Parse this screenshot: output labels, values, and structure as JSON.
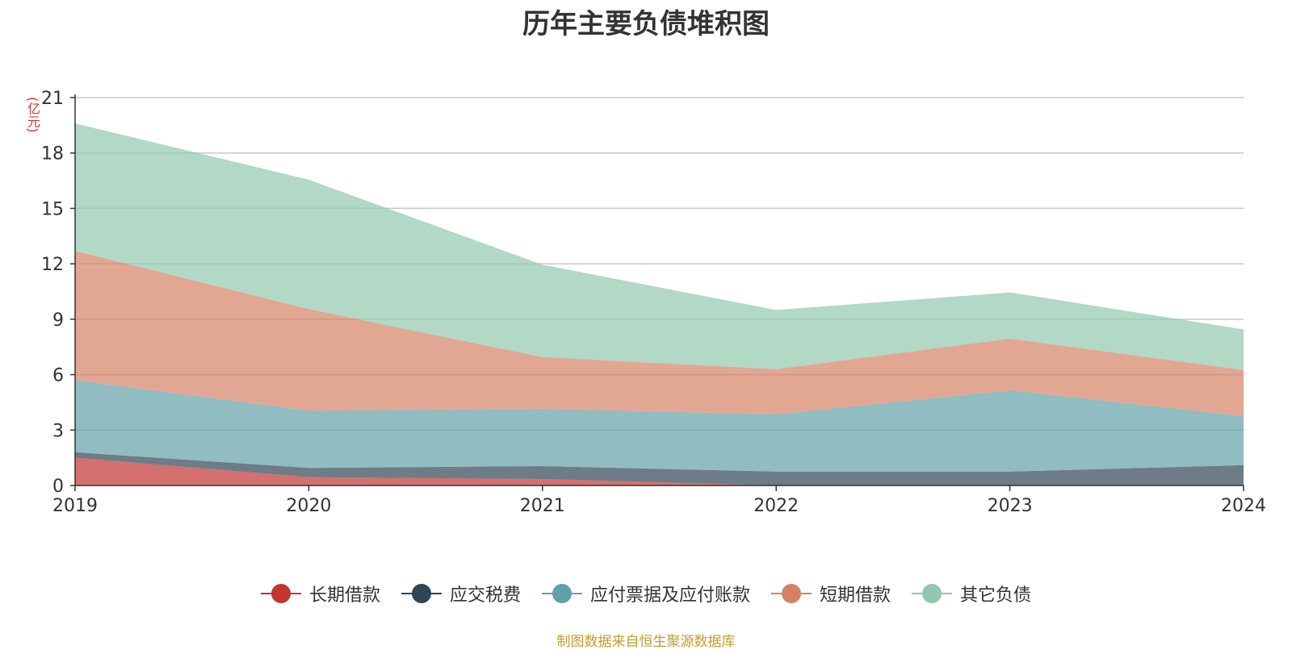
{
  "chart_data": {
    "type": "area",
    "title": "历年主要负债堆积图",
    "unit_label": "(亿元)",
    "x": [
      "2019",
      "2020",
      "2021",
      "2022",
      "2023",
      "2024"
    ],
    "ylim": [
      0,
      21
    ],
    "yticks": [
      "0",
      "3",
      "6",
      "9",
      "12",
      "15",
      "18",
      "21"
    ],
    "stacked": true,
    "grid": true,
    "legend_position": "bottom",
    "series": [
      {
        "name": "长期借款",
        "color": "#c23531",
        "values": [
          1.5,
          0.45,
          0.35,
          0.0,
          0.0,
          0.0
        ]
      },
      {
        "name": "应交税费",
        "color": "#2f4554",
        "values": [
          0.3,
          0.5,
          0.7,
          0.75,
          0.75,
          1.1
        ]
      },
      {
        "name": "应付票据及应付账款",
        "color": "#61a0a8",
        "values": [
          3.9,
          3.1,
          3.1,
          3.1,
          4.4,
          2.65
        ]
      },
      {
        "name": "短期借款",
        "color": "#d48265",
        "values": [
          7.0,
          5.5,
          2.8,
          2.45,
          2.8,
          2.5
        ]
      },
      {
        "name": "其它负债",
        "color": "#91c7ae",
        "values": [
          6.9,
          7.0,
          5.0,
          3.2,
          2.5,
          2.2
        ]
      }
    ],
    "source_note": "制图数据来自恒生聚源数据库"
  }
}
